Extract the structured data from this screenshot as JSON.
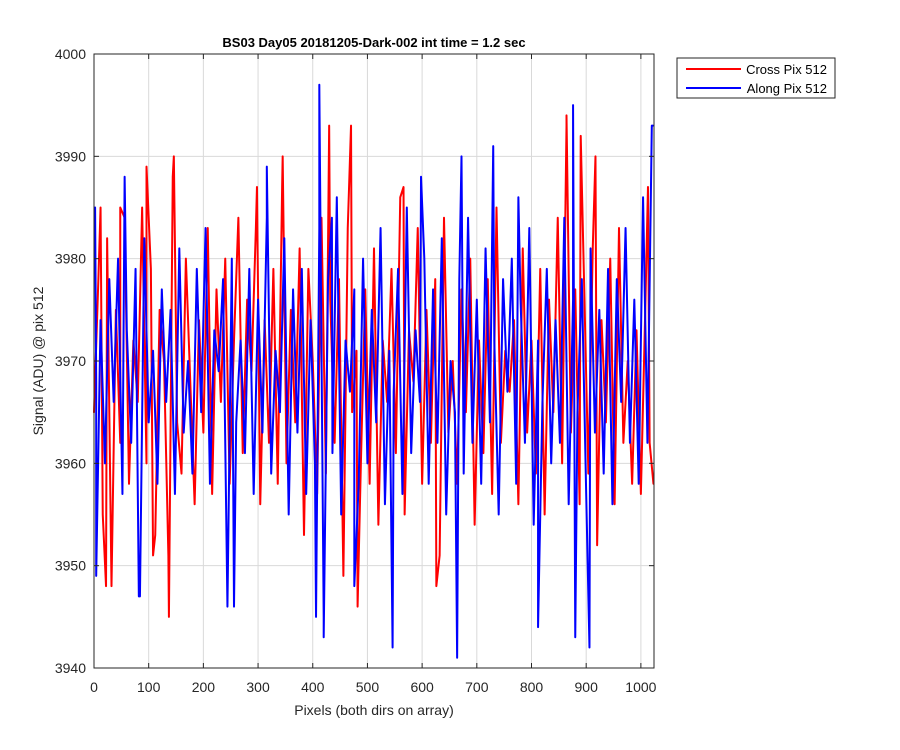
{
  "chart_data": {
    "type": "line",
    "title": "BS03 Day05 20181205-Dark-002 int time = 1.2 sec",
    "xlabel": "Pixels (both dirs on array)",
    "ylabel": "Signal (ADU) @ pix 512",
    "xlim": [
      0,
      1024
    ],
    "ylim": [
      3940,
      4000
    ],
    "xticks": [
      0,
      100,
      200,
      300,
      400,
      500,
      600,
      700,
      800,
      900,
      1000
    ],
    "yticks": [
      3940,
      3950,
      3960,
      3970,
      3980,
      3990,
      4000
    ],
    "grid": true,
    "legend_position": "outside-top-right",
    "series": [
      {
        "name": "Cross Pix 512",
        "color": "#ff0000",
        "x": [
          0,
          8,
          16,
          24,
          32,
          40,
          48,
          56,
          64,
          72,
          80,
          88,
          96,
          104,
          112,
          120,
          128,
          136,
          144,
          152,
          160,
          168,
          176,
          184,
          192,
          200,
          208,
          216,
          224,
          232,
          240,
          248,
          256,
          264,
          272,
          280,
          288,
          296,
          304,
          312,
          320,
          328,
          336,
          344,
          352,
          360,
          368,
          376,
          384,
          392,
          400,
          408,
          416,
          424,
          432,
          440,
          448,
          456,
          464,
          472,
          480,
          488,
          496,
          504,
          512,
          520,
          528,
          536,
          544,
          552,
          560,
          568,
          576,
          584,
          592,
          600,
          608,
          616,
          624,
          632,
          640,
          648,
          656,
          664,
          672,
          680,
          688,
          696,
          704,
          712,
          720,
          728,
          736,
          744,
          752,
          760,
          768,
          776,
          784,
          792,
          800,
          808,
          816,
          824,
          832,
          840,
          848,
          856,
          864,
          872,
          880,
          888,
          896,
          904,
          912,
          920,
          928,
          936,
          944,
          952,
          960,
          968,
          976,
          984,
          992,
          1000,
          1008,
          1016,
          1023
        ],
        "y": [
          3965,
          3978,
          3955,
          3982,
          3948,
          3975,
          3962,
          3984,
          3958,
          3972,
          3966,
          3985,
          3960,
          3979,
          3953,
          3975,
          3970,
          3951,
          3988,
          3964,
          3959,
          3980,
          3968,
          3956,
          3974,
          3963,
          3983,
          3957,
          3977,
          3966,
          3980,
          3958,
          3972,
          3984,
          3961,
          3976,
          3969,
          3983,
          3956,
          3974,
          3962,
          3979,
          3958,
          3987,
          3960,
          3975,
          3964,
          3981,
          3953,
          3979,
          3970,
          3957,
          3984,
          3959,
          3976,
          3962,
          3978,
          3949,
          3983,
          3965,
          3971,
          3960,
          3977,
          3958,
          3981,
          3954,
          3972,
          3966,
          3979,
          3961,
          3986,
          3955,
          3973,
          3968,
          3983,
          3958,
          3975,
          3962,
          3978,
          3951,
          3984,
          3963,
          3970,
          3958,
          3977,
          3965,
          3980,
          3954,
          3972,
          3961,
          3978,
          3957,
          3985,
          3962,
          3971,
          3967,
          3974,
          3956,
          3981,
          3963,
          3972,
          3959,
          3979,
          3955,
          3976,
          3965,
          3984,
          3960,
          3993,
          3963,
          3977,
          3956,
          3978,
          3959,
          3981,
          3952,
          3974,
          3964,
          3980,
          3956,
          3983,
          3962,
          3970,
          3958,
          3973,
          3957,
          3975,
          3962,
          3958
        ],
        "spikes": [
          {
            "x": 12,
            "y": 3985
          },
          {
            "x": 22,
            "y": 3948
          },
          {
            "x": 48,
            "y": 3985
          },
          {
            "x": 96,
            "y": 3989
          },
          {
            "x": 108,
            "y": 3951
          },
          {
            "x": 137,
            "y": 3945
          },
          {
            "x": 146,
            "y": 3990
          },
          {
            "x": 298,
            "y": 3987
          },
          {
            "x": 345,
            "y": 3990
          },
          {
            "x": 430,
            "y": 3993
          },
          {
            "x": 470,
            "y": 3993
          },
          {
            "x": 482,
            "y": 3946
          },
          {
            "x": 566,
            "y": 3987
          },
          {
            "x": 626,
            "y": 3948
          },
          {
            "x": 864,
            "y": 3994
          },
          {
            "x": 890,
            "y": 3992
          },
          {
            "x": 917,
            "y": 3990
          },
          {
            "x": 1013,
            "y": 3987
          }
        ]
      },
      {
        "name": "Along Pix 512",
        "color": "#0000ff",
        "x": [
          4,
          12,
          20,
          28,
          36,
          44,
          52,
          60,
          68,
          76,
          84,
          92,
          100,
          108,
          116,
          124,
          132,
          140,
          148,
          156,
          164,
          172,
          180,
          188,
          196,
          204,
          212,
          220,
          228,
          236,
          244,
          252,
          260,
          268,
          276,
          284,
          292,
          300,
          308,
          316,
          324,
          332,
          340,
          348,
          356,
          364,
          372,
          380,
          388,
          396,
          404,
          412,
          420,
          428,
          436,
          444,
          452,
          460,
          468,
          476,
          484,
          492,
          500,
          508,
          516,
          524,
          532,
          540,
          548,
          556,
          564,
          572,
          580,
          588,
          596,
          604,
          612,
          620,
          628,
          636,
          644,
          652,
          660,
          668,
          676,
          684,
          692,
          700,
          708,
          716,
          724,
          732,
          740,
          748,
          756,
          764,
          772,
          780,
          788,
          796,
          804,
          812,
          820,
          828,
          836,
          844,
          852,
          860,
          868,
          876,
          884,
          892,
          900,
          908,
          916,
          924,
          932,
          940,
          948,
          956,
          964,
          972,
          980,
          988,
          996,
          1004,
          1012,
          1020
        ],
        "y": [
          3968,
          3974,
          3960,
          3978,
          3966,
          3980,
          3957,
          3973,
          3962,
          3979,
          3947,
          3982,
          3964,
          3971,
          3958,
          3977,
          3966,
          3975,
          3957,
          3981,
          3963,
          3970,
          3959,
          3979,
          3965,
          3983,
          3958,
          3973,
          3969,
          3978,
          3946,
          3980,
          3964,
          3972,
          3961,
          3979,
          3957,
          3976,
          3963,
          3984,
          3959,
          3971,
          3965,
          3982,
          3955,
          3977,
          3963,
          3979,
          3957,
          3974,
          3960,
          3983,
          3945,
          3978,
          3961,
          3986,
          3955,
          3972,
          3967,
          3977,
          3958,
          3980,
          3960,
          3975,
          3964,
          3983,
          3956,
          3971,
          3967,
          3979,
          3957,
          3985,
          3961,
          3973,
          3966,
          3980,
          3958,
          3977,
          3962,
          3982,
          3955,
          3970,
          3965,
          3978,
          3959,
          3984,
          3962,
          3976,
          3958,
          3981,
          3964,
          3972,
          3955,
          3978,
          3967,
          3980,
          3958,
          3976,
          3962,
          3983,
          3954,
          3972,
          3966,
          3979,
          3960,
          3974,
          3962,
          3984,
          3956,
          3976,
          3965,
          3978,
          3957,
          3981,
          3963,
          3975,
          3959,
          3979,
          3956,
          3978,
          3966,
          3983,
          3962,
          3976,
          3958,
          3986,
          3962,
          3993
        ],
        "spikes": [
          {
            "x": 2,
            "y": 3985
          },
          {
            "x": 4,
            "y": 3949
          },
          {
            "x": 56,
            "y": 3988
          },
          {
            "x": 82,
            "y": 3947
          },
          {
            "x": 256,
            "y": 3946
          },
          {
            "x": 316,
            "y": 3989
          },
          {
            "x": 406,
            "y": 3945
          },
          {
            "x": 412,
            "y": 3997
          },
          {
            "x": 420,
            "y": 3943
          },
          {
            "x": 435,
            "y": 3984
          },
          {
            "x": 476,
            "y": 3948
          },
          {
            "x": 546,
            "y": 3942
          },
          {
            "x": 598,
            "y": 3988
          },
          {
            "x": 664,
            "y": 3941
          },
          {
            "x": 672,
            "y": 3990
          },
          {
            "x": 730,
            "y": 3991
          },
          {
            "x": 776,
            "y": 3986
          },
          {
            "x": 812,
            "y": 3944
          },
          {
            "x": 876,
            "y": 3995
          },
          {
            "x": 880,
            "y": 3943
          },
          {
            "x": 906,
            "y": 3942
          },
          {
            "x": 1022,
            "y": 3993
          }
        ]
      }
    ]
  }
}
